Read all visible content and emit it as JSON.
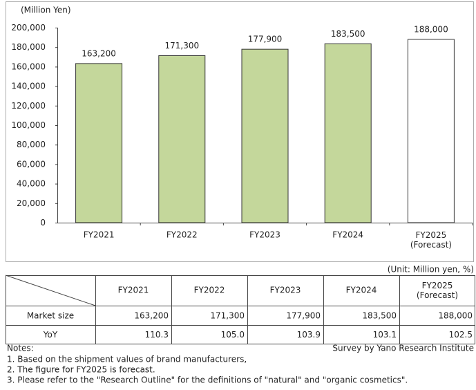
{
  "chart_data": {
    "type": "bar",
    "y_axis_label": "(Million Yen)",
    "categories": [
      "FY2021",
      "FY2022",
      "FY2023",
      "FY2024",
      "FY2025\n(Forecast)"
    ],
    "values": [
      163200,
      171300,
      177900,
      183500,
      188000
    ],
    "value_labels": [
      "163,200",
      "171,300",
      "177,900",
      "183,500",
      "188,000"
    ],
    "colors": [
      "#c4d79b",
      "#c4d79b",
      "#c4d79b",
      "#c4d79b",
      "#ffffff"
    ],
    "ylim": [
      0,
      200000
    ],
    "yticks": [
      0,
      {
        "value": 20000,
        "label": "20,000"
      },
      {
        "value": 40000,
        "label": "40,000"
      },
      {
        "value": 60000,
        "label": "60,000"
      },
      {
        "value": 80000,
        "label": "80,000"
      },
      {
        "value": 100000,
        "label": "100,000"
      },
      {
        "value": 120000,
        "label": "120,000"
      },
      {
        "value": 140000,
        "label": "140,000"
      },
      {
        "value": 160000,
        "label": "160,000"
      },
      {
        "value": 180000,
        "label": "180,000"
      },
      {
        "value": 200000,
        "label": "200,000"
      }
    ]
  },
  "unit_note": "(Unit: Million yen, %)",
  "table": {
    "header": [
      "FY2021",
      "FY2022",
      "FY2023",
      "FY2024",
      "FY2025\n(Forecast)"
    ],
    "rows": [
      [
        "Market size",
        "163,200",
        "171,300",
        "177,900",
        "183,500",
        "188,000"
      ],
      [
        "YoY",
        "110.3",
        "105.0",
        "103.9",
        "103.1",
        "102.5"
      ]
    ]
  },
  "notes_title": "Notes:",
  "source": "Survey by Yano Research Institute",
  "notes": [
    "1. Based on the shipment values of brand manufacturers,",
    "2. The figure for FY2025 is forecast.",
    "3. Please refer to the \"Research Outline\" for the definitions of \"natural\" and \"organic cosmetics\"."
  ]
}
